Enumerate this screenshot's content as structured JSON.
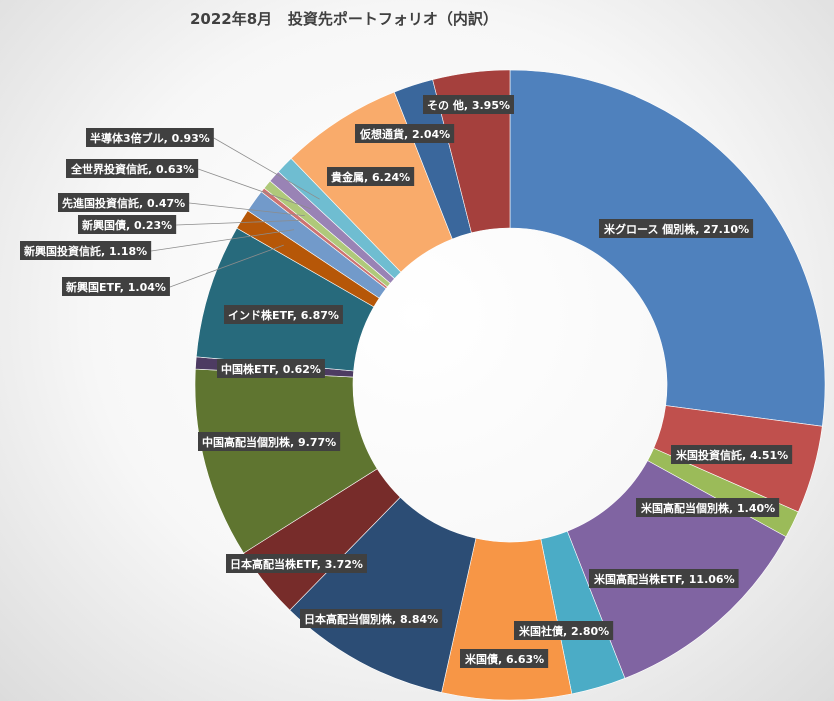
{
  "chart_data": {
    "type": "pie",
    "style": "doughnut",
    "title": "2022年8月   投資先ポートフォリオ（内訳）",
    "slices": [
      {
        "label": "米グロース 個別株",
        "pct_label": "27.10%",
        "value": 27.1,
        "color": "#4f81bd"
      },
      {
        "label": "米国投資信託",
        "pct_label": "4.51%",
        "value": 4.51,
        "color": "#c0504d"
      },
      {
        "label": "米国高配当個別株",
        "pct_label": "1.40%",
        "value": 1.4,
        "color": "#9bbb59"
      },
      {
        "label": "米国高配当株ETF",
        "pct_label": "11.06%",
        "value": 11.06,
        "color": "#8064a2"
      },
      {
        "label": "米国社債",
        "pct_label": "2.80%",
        "value": 2.8,
        "color": "#4bacc6"
      },
      {
        "label": "米国債",
        "pct_label": "6.63%",
        "value": 6.63,
        "color": "#f79646"
      },
      {
        "label": "日本高配当個別株",
        "pct_label": "8.84%",
        "value": 8.84,
        "color": "#2c4d75"
      },
      {
        "label": "日本高配当株ETF",
        "pct_label": "3.72%",
        "value": 3.72,
        "color": "#772c2a"
      },
      {
        "label": "中国高配当個別株",
        "pct_label": "9.77%",
        "value": 9.77,
        "color": "#5f7530"
      },
      {
        "label": "中国株ETF",
        "pct_label": "0.62%",
        "value": 0.62,
        "color": "#4d3b62"
      },
      {
        "label": "インド株ETF",
        "pct_label": "6.87%",
        "value": 6.87,
        "color": "#276a7c"
      },
      {
        "label": "新興国ETF",
        "pct_label": "1.04%",
        "value": 1.04,
        "color": "#b65708"
      },
      {
        "label": "新興国投資信託",
        "pct_label": "1.18%",
        "value": 1.18,
        "color": "#729aca"
      },
      {
        "label": "新興国債",
        "pct_label": "0.23%",
        "value": 0.23,
        "color": "#cd7371"
      },
      {
        "label": "先進国投資信託",
        "pct_label": "0.47%",
        "value": 0.47,
        "color": "#afc97a"
      },
      {
        "label": "全世界投資信託",
        "pct_label": "0.63%",
        "value": 0.63,
        "color": "#9983b5"
      },
      {
        "label": "半導体3倍ブル",
        "pct_label": "0.93%",
        "value": 0.93,
        "color": "#6fbdd1"
      },
      {
        "label": "貴金属",
        "pct_label": "6.24%",
        "value": 6.24,
        "color": "#f9ab6b"
      },
      {
        "label": "仮想通貨",
        "pct_label": "2.04%",
        "value": 2.04,
        "color": "#3a679c"
      },
      {
        "label": "その 他",
        "pct_label": "3.95%",
        "value": 3.95,
        "color": "#a5403d"
      }
    ],
    "legend": "none"
  }
}
